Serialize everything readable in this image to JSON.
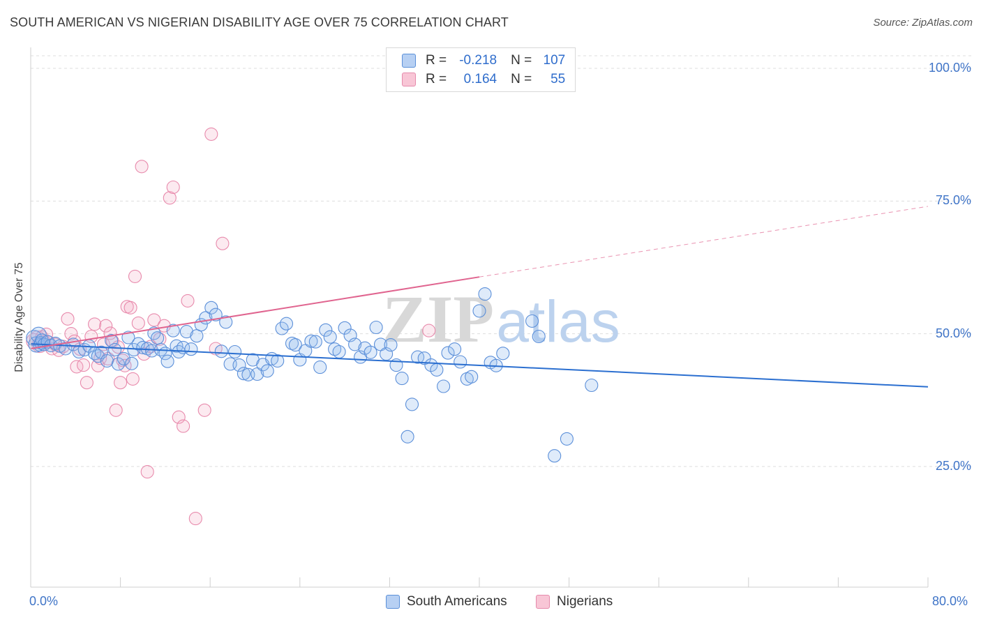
{
  "title": "SOUTH AMERICAN VS NIGERIAN DISABILITY AGE OVER 75 CORRELATION CHART",
  "source": "Source: ZipAtlas.com",
  "watermark": {
    "part1": "ZIP",
    "part2": "atlas"
  },
  "stats": {
    "r_label": "R =",
    "n_label": "N =",
    "blue": {
      "r": "-0.218",
      "n": "107"
    },
    "pink": {
      "r": "0.164",
      "n": "55"
    }
  },
  "colors": {
    "blue": "#5b8fd9",
    "blue_fill": "rgba(150,188,240,0.30)",
    "blue_line": "#2b6fd0",
    "pink": "#e88aac",
    "pink_fill": "rgba(244,170,196,0.25)",
    "pink_line": "#e0648f",
    "axis_text": "#3f74c7"
  },
  "chart_data": {
    "type": "scatter",
    "ylabel": "Disability Age Over 75",
    "xlim": [
      0,
      80
    ],
    "ylim": [
      0,
      105
    ],
    "x_tick_labels": [
      "0.0%",
      "80.0%"
    ],
    "y_ticks": [
      {
        "value": 100,
        "label": "100.0%"
      },
      {
        "value": 75,
        "label": "75.0%"
      },
      {
        "value": 50,
        "label": "50.0%"
      },
      {
        "value": 25,
        "label": "25.0%"
      }
    ],
    "grid": "horizontal dashed",
    "legend": [
      {
        "name": "South Americans",
        "color": "blue"
      },
      {
        "name": "Nigerians",
        "color": "pink"
      }
    ],
    "trendlines": [
      {
        "series": "South Americans",
        "x1": 0,
        "y1": 48.1,
        "x2": 80,
        "y2": 40.0,
        "dashed_from": null
      },
      {
        "series": "Nigerians",
        "x1": 0,
        "y1": 47.2,
        "x2": 40,
        "y2": 60.7,
        "dashed_to": 80,
        "dashed_y": 74.0
      }
    ],
    "series": [
      {
        "name": "South Americans",
        "points": [
          [
            0.3,
            49.2
          ],
          [
            0.5,
            48.0
          ],
          [
            0.7,
            49.8
          ],
          [
            0.8,
            47.9
          ],
          [
            0.9,
            48.3
          ],
          [
            1.0,
            48.8
          ],
          [
            1.2,
            48.0
          ],
          [
            1.5,
            48.5
          ],
          [
            1.8,
            47.8
          ],
          [
            2.2,
            48.2
          ],
          [
            2.6,
            47.7
          ],
          [
            3.1,
            47.2
          ],
          [
            3.8,
            48.0
          ],
          [
            4.3,
            46.6
          ],
          [
            4.8,
            47.0
          ],
          [
            5.2,
            47.7
          ],
          [
            5.7,
            46.3
          ],
          [
            6.0,
            45.8
          ],
          [
            6.3,
            46.5
          ],
          [
            6.8,
            44.9
          ],
          [
            7.2,
            48.7
          ],
          [
            7.5,
            47.0
          ],
          [
            7.8,
            44.3
          ],
          [
            8.3,
            45.3
          ],
          [
            8.7,
            49.3
          ],
          [
            9.0,
            44.4
          ],
          [
            9.2,
            47.0
          ],
          [
            9.6,
            48.1
          ],
          [
            10.0,
            47.4
          ],
          [
            10.4,
            47.2
          ],
          [
            10.8,
            46.8
          ],
          [
            11.0,
            50.1
          ],
          [
            11.3,
            49.2
          ],
          [
            11.6,
            47.0
          ],
          [
            12.0,
            46.3
          ],
          [
            12.2,
            44.8
          ],
          [
            12.7,
            50.6
          ],
          [
            13.0,
            47.7
          ],
          [
            13.2,
            46.6
          ],
          [
            13.6,
            47.4
          ],
          [
            13.9,
            50.4
          ],
          [
            14.3,
            47.1
          ],
          [
            14.8,
            49.6
          ],
          [
            15.2,
            51.7
          ],
          [
            15.6,
            53.0
          ],
          [
            16.1,
            54.9
          ],
          [
            16.5,
            53.6
          ],
          [
            17.0,
            46.7
          ],
          [
            17.4,
            52.2
          ],
          [
            17.8,
            44.3
          ],
          [
            18.2,
            46.6
          ],
          [
            18.6,
            44.1
          ],
          [
            19.0,
            42.5
          ],
          [
            19.4,
            42.3
          ],
          [
            19.8,
            45.1
          ],
          [
            20.2,
            42.4
          ],
          [
            20.7,
            44.2
          ],
          [
            21.1,
            43.0
          ],
          [
            21.5,
            45.3
          ],
          [
            22.0,
            44.9
          ],
          [
            22.4,
            51.0
          ],
          [
            22.8,
            51.9
          ],
          [
            23.3,
            48.2
          ],
          [
            23.6,
            47.9
          ],
          [
            24.0,
            45.1
          ],
          [
            24.5,
            46.8
          ],
          [
            25.0,
            48.6
          ],
          [
            25.4,
            48.5
          ],
          [
            25.8,
            43.7
          ],
          [
            26.3,
            50.7
          ],
          [
            26.7,
            49.4
          ],
          [
            27.1,
            47.1
          ],
          [
            27.5,
            46.6
          ],
          [
            28.0,
            51.1
          ],
          [
            28.5,
            49.7
          ],
          [
            28.9,
            48.0
          ],
          [
            29.4,
            45.6
          ],
          [
            29.8,
            47.3
          ],
          [
            30.3,
            46.5
          ],
          [
            30.8,
            51.2
          ],
          [
            31.2,
            48.0
          ],
          [
            31.7,
            46.2
          ],
          [
            32.1,
            47.9
          ],
          [
            32.6,
            44.1
          ],
          [
            33.1,
            41.6
          ],
          [
            33.6,
            30.6
          ],
          [
            34.0,
            36.7
          ],
          [
            34.5,
            45.6
          ],
          [
            35.1,
            45.4
          ],
          [
            35.7,
            44.1
          ],
          [
            36.2,
            43.2
          ],
          [
            36.8,
            40.1
          ],
          [
            37.2,
            46.4
          ],
          [
            37.8,
            47.1
          ],
          [
            38.3,
            44.7
          ],
          [
            38.9,
            41.5
          ],
          [
            39.3,
            41.9
          ],
          [
            40.0,
            54.3
          ],
          [
            40.5,
            57.5
          ],
          [
            41.0,
            44.6
          ],
          [
            41.5,
            44.0
          ],
          [
            42.1,
            46.3
          ],
          [
            44.7,
            52.4
          ],
          [
            45.3,
            49.5
          ],
          [
            46.7,
            27.0
          ],
          [
            47.8,
            30.2
          ],
          [
            50.0,
            40.3
          ]
        ]
      },
      {
        "name": "Nigerians",
        "points": [
          [
            0.3,
            48.6
          ],
          [
            0.6,
            49.1
          ],
          [
            0.8,
            47.9
          ],
          [
            1.0,
            49.4
          ],
          [
            1.2,
            48.5
          ],
          [
            1.4,
            49.9
          ],
          [
            1.6,
            48.4
          ],
          [
            1.9,
            47.2
          ],
          [
            2.2,
            48.0
          ],
          [
            2.5,
            46.9
          ],
          [
            2.9,
            47.6
          ],
          [
            3.3,
            52.8
          ],
          [
            3.6,
            50.0
          ],
          [
            3.9,
            48.6
          ],
          [
            4.1,
            43.8
          ],
          [
            4.4,
            47.1
          ],
          [
            4.7,
            44.1
          ],
          [
            5.0,
            40.8
          ],
          [
            5.4,
            49.5
          ],
          [
            5.7,
            51.8
          ],
          [
            6.0,
            44.0
          ],
          [
            6.2,
            45.4
          ],
          [
            6.5,
            48.0
          ],
          [
            6.7,
            51.5
          ],
          [
            6.9,
            45.3
          ],
          [
            7.1,
            50.1
          ],
          [
            7.3,
            48.6
          ],
          [
            7.6,
            35.6
          ],
          [
            7.8,
            47.5
          ],
          [
            8.0,
            40.8
          ],
          [
            8.2,
            45.0
          ],
          [
            8.4,
            44.0
          ],
          [
            8.6,
            55.1
          ],
          [
            8.9,
            54.9
          ],
          [
            9.1,
            41.5
          ],
          [
            9.3,
            60.8
          ],
          [
            9.6,
            52.0
          ],
          [
            9.9,
            81.5
          ],
          [
            10.1,
            46.2
          ],
          [
            10.4,
            24.0
          ],
          [
            10.7,
            47.6
          ],
          [
            11.0,
            52.6
          ],
          [
            11.5,
            49.0
          ],
          [
            11.9,
            51.5
          ],
          [
            12.4,
            75.6
          ],
          [
            12.7,
            77.6
          ],
          [
            13.2,
            34.3
          ],
          [
            13.6,
            32.6
          ],
          [
            14.0,
            56.2
          ],
          [
            14.7,
            15.2
          ],
          [
            15.5,
            35.6
          ],
          [
            16.1,
            87.6
          ],
          [
            16.5,
            47.2
          ],
          [
            17.1,
            67.0
          ],
          [
            35.5,
            50.6
          ]
        ]
      }
    ]
  }
}
